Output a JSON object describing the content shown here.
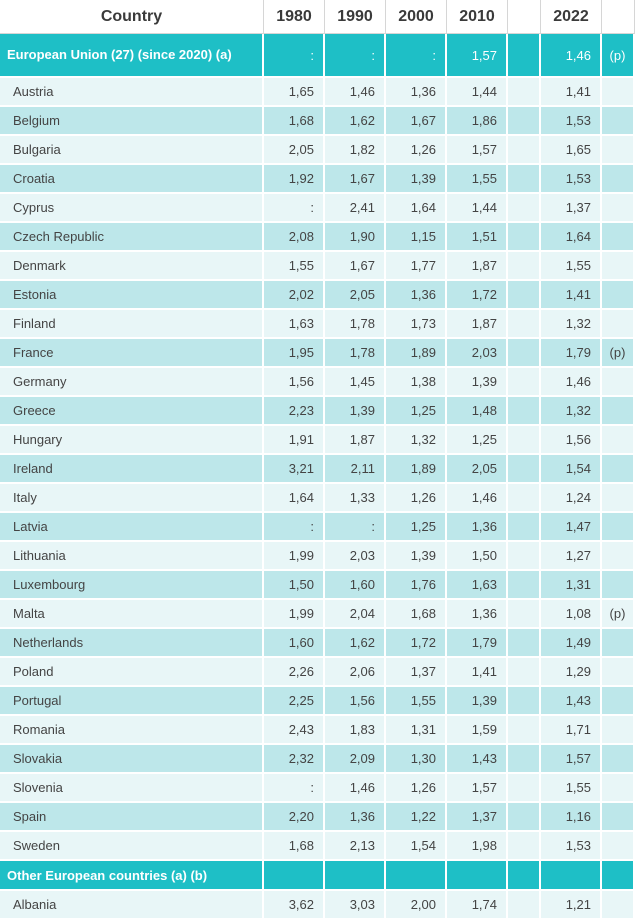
{
  "table": {
    "headers": [
      "Country",
      "1980",
      "1990",
      "2000",
      "2010",
      "",
      "2022",
      ""
    ],
    "eu_row": {
      "name": "European Union (27) (since 2020) (a)",
      "v1980": ":",
      "v1990": ":",
      "v2000": ":",
      "v2010": "1,57",
      "v2022": "1,46",
      "flag": "(p)"
    },
    "rows": [
      {
        "name": "Austria",
        "v1980": "1,65",
        "v1990": "1,46",
        "v2000": "1,36",
        "v2010": "1,44",
        "v2022": "1,41",
        "flag": ""
      },
      {
        "name": "Belgium",
        "v1980": "1,68",
        "v1990": "1,62",
        "v2000": "1,67",
        "v2010": "1,86",
        "v2022": "1,53",
        "flag": ""
      },
      {
        "name": "Bulgaria",
        "v1980": "2,05",
        "v1990": "1,82",
        "v2000": "1,26",
        "v2010": "1,57",
        "v2022": "1,65",
        "flag": ""
      },
      {
        "name": "Croatia",
        "v1980": "1,92",
        "v1990": "1,67",
        "v2000": "1,39",
        "v2010": "1,55",
        "v2022": "1,53",
        "flag": ""
      },
      {
        "name": "Cyprus",
        "v1980": ":",
        "v1990": "2,41",
        "v2000": "1,64",
        "v2010": "1,44",
        "v2022": "1,37",
        "flag": ""
      },
      {
        "name": "Czech Republic",
        "v1980": "2,08",
        "v1990": "1,90",
        "v2000": "1,15",
        "v2010": "1,51",
        "v2022": "1,64",
        "flag": ""
      },
      {
        "name": "Denmark",
        "v1980": "1,55",
        "v1990": "1,67",
        "v2000": "1,77",
        "v2010": "1,87",
        "v2022": "1,55",
        "flag": ""
      },
      {
        "name": "Estonia",
        "v1980": "2,02",
        "v1990": "2,05",
        "v2000": "1,36",
        "v2010": "1,72",
        "v2022": "1,41",
        "flag": ""
      },
      {
        "name": "Finland",
        "v1980": "1,63",
        "v1990": "1,78",
        "v2000": "1,73",
        "v2010": "1,87",
        "v2022": "1,32",
        "flag": ""
      },
      {
        "name": "France",
        "v1980": "1,95",
        "v1990": "1,78",
        "v2000": "1,89",
        "v2010": "2,03",
        "v2022": "1,79",
        "flag": "(p)"
      },
      {
        "name": "Germany",
        "v1980": "1,56",
        "v1990": "1,45",
        "v2000": "1,38",
        "v2010": "1,39",
        "v2022": "1,46",
        "flag": ""
      },
      {
        "name": "Greece",
        "v1980": "2,23",
        "v1990": "1,39",
        "v2000": "1,25",
        "v2010": "1,48",
        "v2022": "1,32",
        "flag": ""
      },
      {
        "name": "Hungary",
        "v1980": "1,91",
        "v1990": "1,87",
        "v2000": "1,32",
        "v2010": "1,25",
        "v2022": "1,56",
        "flag": ""
      },
      {
        "name": "Ireland",
        "v1980": "3,21",
        "v1990": "2,11",
        "v2000": "1,89",
        "v2010": "2,05",
        "v2022": "1,54",
        "flag": ""
      },
      {
        "name": "Italy",
        "v1980": "1,64",
        "v1990": "1,33",
        "v2000": "1,26",
        "v2010": "1,46",
        "v2022": "1,24",
        "flag": ""
      },
      {
        "name": "Latvia",
        "v1980": ":",
        "v1990": ":",
        "v2000": "1,25",
        "v2010": "1,36",
        "v2022": "1,47",
        "flag": ""
      },
      {
        "name": "Lithuania",
        "v1980": "1,99",
        "v1990": "2,03",
        "v2000": "1,39",
        "v2010": "1,50",
        "v2022": "1,27",
        "flag": ""
      },
      {
        "name": "Luxembourg",
        "v1980": "1,50",
        "v1990": "1,60",
        "v2000": "1,76",
        "v2010": "1,63",
        "v2022": "1,31",
        "flag": ""
      },
      {
        "name": "Malta",
        "v1980": "1,99",
        "v1990": "2,04",
        "v2000": "1,68",
        "v2010": "1,36",
        "v2022": "1,08",
        "flag": "(p)"
      },
      {
        "name": "Netherlands",
        "v1980": "1,60",
        "v1990": "1,62",
        "v2000": "1,72",
        "v2010": "1,79",
        "v2022": "1,49",
        "flag": ""
      },
      {
        "name": "Poland",
        "v1980": "2,26",
        "v1990": "2,06",
        "v2000": "1,37",
        "v2010": "1,41",
        "v2022": "1,29",
        "flag": ""
      },
      {
        "name": "Portugal",
        "v1980": "2,25",
        "v1990": "1,56",
        "v2000": "1,55",
        "v2010": "1,39",
        "v2022": "1,43",
        "flag": ""
      },
      {
        "name": "Romania",
        "v1980": "2,43",
        "v1990": "1,83",
        "v2000": "1,31",
        "v2010": "1,59",
        "v2022": "1,71",
        "flag": ""
      },
      {
        "name": "Slovakia",
        "v1980": "2,32",
        "v1990": "2,09",
        "v2000": "1,30",
        "v2010": "1,43",
        "v2022": "1,57",
        "flag": ""
      },
      {
        "name": "Slovenia",
        "v1980": ":",
        "v1990": "1,46",
        "v2000": "1,26",
        "v2010": "1,57",
        "v2022": "1,55",
        "flag": ""
      },
      {
        "name": "Spain",
        "v1980": "2,20",
        "v1990": "1,36",
        "v2000": "1,22",
        "v2010": "1,37",
        "v2022": "1,16",
        "flag": ""
      },
      {
        "name": "Sweden",
        "v1980": "1,68",
        "v1990": "2,13",
        "v2000": "1,54",
        "v2010": "1,98",
        "v2022": "1,53",
        "flag": ""
      }
    ],
    "section_other": {
      "name": "Other European countries (a) (b)"
    },
    "other_rows": [
      {
        "name": "Albania",
        "v1980": "3,62",
        "v1990": "3,03",
        "v2000": "2,00",
        "v2010": "1,74",
        "v2022": "1,21",
        "flag": ""
      }
    ]
  }
}
